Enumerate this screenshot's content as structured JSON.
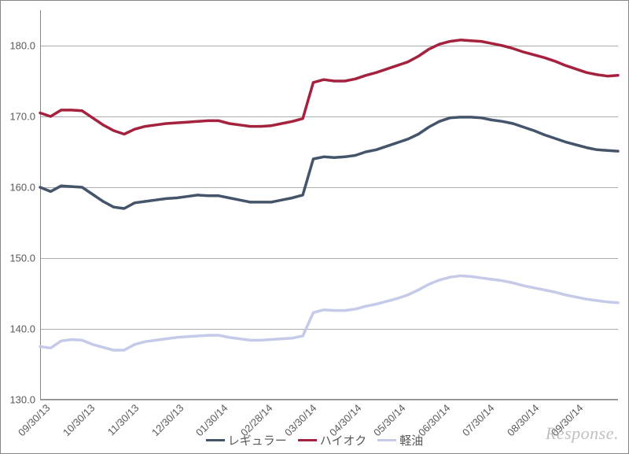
{
  "chart": {
    "type": "line",
    "background_color": "#ffffff",
    "grid_color": "#878787",
    "axis_color": "#878787",
    "label_color": "#595959",
    "label_fontsize": 13,
    "ylim": [
      130,
      185
    ],
    "yticks": [
      130.0,
      140.0,
      150.0,
      160.0,
      170.0,
      180.0
    ],
    "ytick_labels": [
      "130.0",
      "140.0",
      "150.0",
      "160.0",
      "170.0",
      "180.0"
    ],
    "xticks_count": 13,
    "xtick_labels": [
      "09/30/13",
      "10/30/13",
      "11/30/13",
      "12/30/13",
      "01/30/14",
      "02/28/14",
      "03/30/14",
      "04/30/14",
      "05/30/14",
      "06/30/14",
      "07/30/14",
      "08/30/14",
      "09/30/14"
    ],
    "n_points": 56,
    "line_width": 3.5,
    "series": [
      {
        "name": "レギュラー",
        "color": "#44546a",
        "values": [
          160.0,
          159.4,
          160.2,
          160.1,
          160.0,
          159.0,
          158.0,
          157.2,
          157.0,
          157.8,
          158.0,
          158.2,
          158.4,
          158.5,
          158.7,
          158.9,
          158.8,
          158.8,
          158.5,
          158.2,
          157.9,
          157.9,
          157.9,
          158.2,
          158.5,
          158.9,
          164.0,
          164.3,
          164.2,
          164.3,
          164.5,
          165.0,
          165.3,
          165.8,
          166.3,
          166.8,
          167.5,
          168.5,
          169.3,
          169.8,
          169.9,
          169.9,
          169.8,
          169.5,
          169.3,
          169.0,
          168.5,
          168.0,
          167.4,
          166.9,
          166.4,
          166.0,
          165.6,
          165.3,
          165.2,
          165.1
        ]
      },
      {
        "name": "ハイオク",
        "color": "#a4223e",
        "values": [
          170.5,
          170.0,
          170.9,
          170.9,
          170.8,
          169.8,
          168.8,
          168.0,
          167.5,
          168.2,
          168.6,
          168.8,
          169.0,
          169.1,
          169.2,
          169.3,
          169.4,
          169.4,
          169.0,
          168.8,
          168.6,
          168.6,
          168.7,
          169.0,
          169.3,
          169.7,
          174.8,
          175.2,
          175.0,
          175.0,
          175.3,
          175.8,
          176.2,
          176.7,
          177.2,
          177.7,
          178.5,
          179.5,
          180.2,
          180.6,
          180.8,
          180.7,
          180.6,
          180.3,
          180.0,
          179.6,
          179.1,
          178.7,
          178.3,
          177.8,
          177.2,
          176.7,
          176.2,
          175.9,
          175.7,
          175.8
        ]
      },
      {
        "name": "軽油",
        "color": "#c5cae9",
        "values": [
          137.5,
          137.3,
          138.3,
          138.5,
          138.4,
          137.8,
          137.4,
          137.0,
          137.0,
          137.8,
          138.2,
          138.4,
          138.6,
          138.8,
          138.9,
          139.0,
          139.1,
          139.1,
          138.8,
          138.6,
          138.4,
          138.4,
          138.5,
          138.6,
          138.7,
          139.0,
          142.3,
          142.7,
          142.6,
          142.6,
          142.8,
          143.2,
          143.5,
          143.9,
          144.3,
          144.8,
          145.5,
          146.3,
          146.9,
          147.3,
          147.5,
          147.4,
          147.2,
          147.0,
          146.8,
          146.5,
          146.1,
          145.8,
          145.5,
          145.2,
          144.8,
          144.5,
          144.2,
          144.0,
          143.8,
          143.7
        ]
      }
    ]
  },
  "legend": {
    "items": [
      {
        "label": "レギュラー",
        "color": "#44546a"
      },
      {
        "label": "ハイオク",
        "color": "#a4223e"
      },
      {
        "label": "軽油",
        "color": "#c5cae9"
      }
    ]
  },
  "watermark": "Response."
}
